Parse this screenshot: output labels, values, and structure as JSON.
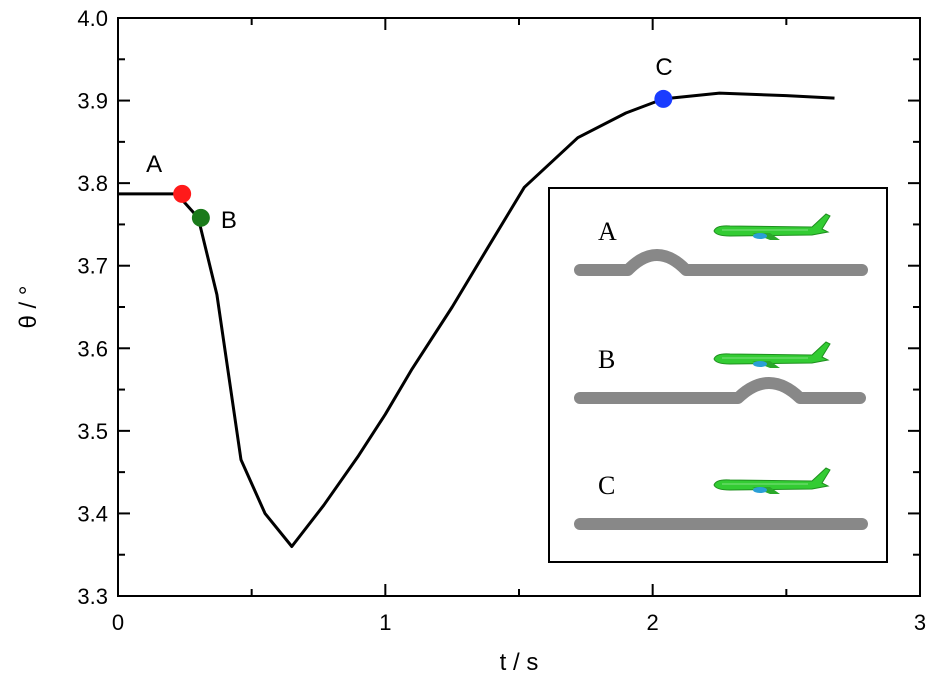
{
  "chart_data": {
    "type": "line",
    "xlabel": "t / s",
    "ylabel": "θ / °",
    "xlim": [
      0,
      3
    ],
    "ylim": [
      3.3,
      4.0
    ],
    "xticks": [
      "0",
      "1",
      "2",
      "3"
    ],
    "yticks": [
      "3.3",
      "3.4",
      "3.5",
      "3.6",
      "3.7",
      "3.8",
      "3.9",
      "4.0"
    ],
    "series": [
      {
        "color": "#000000",
        "x": [
          0,
          0.22,
          0.3,
          0.37,
          0.46,
          0.55,
          0.65,
          0.77,
          0.9,
          1.0,
          1.1,
          1.25,
          1.38,
          1.52,
          1.72,
          1.9,
          2.04,
          2.25,
          2.5,
          2.68
        ],
        "y": [
          3.787,
          3.787,
          3.758,
          3.665,
          3.465,
          3.4,
          3.36,
          3.41,
          3.47,
          3.52,
          3.575,
          3.65,
          3.72,
          3.795,
          3.855,
          3.885,
          3.902,
          3.909,
          3.906,
          3.903
        ]
      }
    ],
    "markers": [
      {
        "label": "A",
        "x": 0.24,
        "y": 3.787,
        "color": "#ff1a1a"
      },
      {
        "label": "B",
        "x": 0.31,
        "y": 3.758,
        "color": "#1a7a1a"
      },
      {
        "label": "C",
        "x": 2.04,
        "y": 3.902,
        "color": "#1a3cff"
      }
    ],
    "inset": {
      "rows": [
        {
          "label": "A",
          "bump_position": "left"
        },
        {
          "label": "B",
          "bump_position": "right"
        },
        {
          "label": "C",
          "bump_position": "none"
        }
      ],
      "plane_color": "#33cc33",
      "road_color": "#888888"
    }
  }
}
